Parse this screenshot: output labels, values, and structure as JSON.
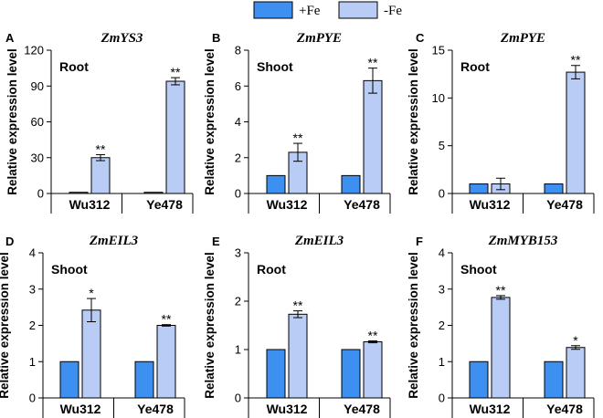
{
  "legend": {
    "fe_plus": {
      "label": "+Fe",
      "color": "#3d8ff0"
    },
    "fe_minus": {
      "label": "-Fe",
      "color": "#b8ccf5"
    }
  },
  "chart_data": [
    {
      "letter": "A",
      "type": "bar",
      "title": "ZmYS3",
      "tissue": "Root",
      "ylabel": "Relative expression level",
      "ylim": [
        0,
        120
      ],
      "yticks": [
        "0",
        "30",
        "60",
        "90",
        "120"
      ],
      "categories": [
        "Wu312",
        "Ye478"
      ],
      "series": [
        {
          "name": "+Fe",
          "values": [
            1,
            1
          ],
          "errors": [
            0,
            0
          ]
        },
        {
          "name": "-Fe",
          "values": [
            30,
            94
          ],
          "errors": [
            2.5,
            3
          ]
        }
      ],
      "significance": {
        "-Fe": [
          "**",
          "**"
        ]
      }
    },
    {
      "letter": "B",
      "type": "bar",
      "title": "ZmPYE",
      "tissue": "Shoot",
      "ylabel": "Relative expression level",
      "ylim": [
        0,
        8
      ],
      "yticks": [
        "0",
        "2",
        "4",
        "6",
        "8"
      ],
      "categories": [
        "Wu312",
        "Ye478"
      ],
      "series": [
        {
          "name": "+Fe",
          "values": [
            1,
            1
          ],
          "errors": [
            0,
            0
          ]
        },
        {
          "name": "-Fe",
          "values": [
            2.3,
            6.3
          ],
          "errors": [
            0.5,
            0.7
          ]
        }
      ],
      "significance": {
        "-Fe": [
          "**",
          "**"
        ]
      }
    },
    {
      "letter": "C",
      "type": "bar",
      "title": "ZmPYE",
      "tissue": "Root",
      "ylabel": "Relative expression level",
      "ylim": [
        0,
        15
      ],
      "yticks": [
        "0",
        "5",
        "10",
        "15"
      ],
      "categories": [
        "Wu312",
        "Ye478"
      ],
      "series": [
        {
          "name": "+Fe",
          "values": [
            1,
            1
          ],
          "errors": [
            0,
            0
          ]
        },
        {
          "name": "-Fe",
          "values": [
            1,
            12.7
          ],
          "errors": [
            0.6,
            0.7
          ]
        }
      ],
      "significance": {
        "-Fe": [
          "",
          "**"
        ]
      }
    },
    {
      "letter": "D",
      "type": "bar",
      "title": "ZmEIL3",
      "tissue": "Shoot",
      "ylabel": "Relative expression level",
      "ylim": [
        0,
        4
      ],
      "yticks": [
        "0",
        "1",
        "2",
        "3",
        "4"
      ],
      "categories": [
        "Wu312",
        "Ye478"
      ],
      "series": [
        {
          "name": "+Fe",
          "values": [
            1,
            1
          ],
          "errors": [
            0,
            0
          ]
        },
        {
          "name": "-Fe",
          "values": [
            2.42,
            2.0
          ],
          "errors": [
            0.32,
            0.02
          ]
        }
      ],
      "significance": {
        "-Fe": [
          "*",
          "**"
        ]
      }
    },
    {
      "letter": "E",
      "type": "bar",
      "title": "ZmEIL3",
      "tissue": "Root",
      "ylabel": "Relative expression level",
      "ylim": [
        0,
        3
      ],
      "yticks": [
        "0",
        "1",
        "2",
        "3"
      ],
      "categories": [
        "Wu312",
        "Ye478"
      ],
      "series": [
        {
          "name": "+Fe",
          "values": [
            1,
            1
          ],
          "errors": [
            0,
            0
          ]
        },
        {
          "name": "-Fe",
          "values": [
            1.73,
            1.16
          ],
          "errors": [
            0.07,
            0.02
          ]
        }
      ],
      "significance": {
        "-Fe": [
          "**",
          "**"
        ]
      }
    },
    {
      "letter": "F",
      "type": "bar",
      "title": "ZmMYB153",
      "tissue": "Shoot",
      "ylabel": "Relative expression level",
      "ylim": [
        0,
        4
      ],
      "yticks": [
        "0",
        "1",
        "2",
        "3",
        "4"
      ],
      "categories": [
        "Wu312",
        "Ye478"
      ],
      "series": [
        {
          "name": "+Fe",
          "values": [
            1,
            1
          ],
          "errors": [
            0,
            0
          ]
        },
        {
          "name": "-Fe",
          "values": [
            2.77,
            1.39
          ],
          "errors": [
            0.05,
            0.05
          ]
        }
      ],
      "significance": {
        "-Fe": [
          "**",
          "*"
        ]
      }
    }
  ]
}
